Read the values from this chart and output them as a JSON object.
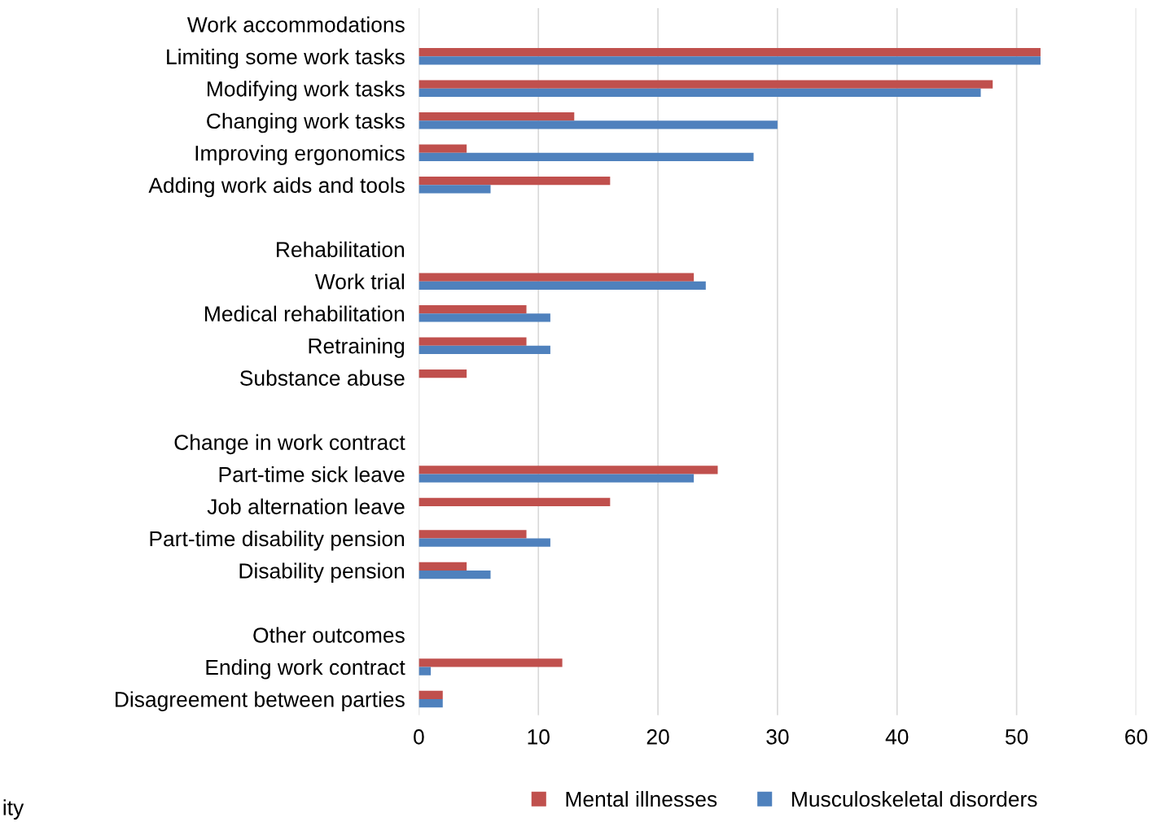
{
  "chart_data": {
    "type": "bar",
    "orientation": "horizontal",
    "categories": [
      "Work accommodations",
      "Limiting some work tasks",
      "Modifying work tasks",
      "Changing work tasks",
      "Improving ergonomics",
      "Adding work aids and tools",
      null,
      "Rehabilitation",
      "Work trial",
      "Medical rehabilitation",
      "Retraining",
      "Substance abuse",
      null,
      "Change in work contract",
      "Part-time sick leave",
      "Job alternation leave",
      "Part-time disability pension",
      "Disability pension",
      null,
      "Other outcomes",
      "Ending work contract",
      "Disagreement between parties"
    ],
    "series": [
      {
        "name": "Mental illnesses",
        "color": "#c0504d",
        "values": [
          null,
          52,
          48,
          13,
          4,
          16,
          null,
          null,
          23,
          9,
          9,
          4,
          null,
          null,
          25,
          16,
          9,
          4,
          null,
          null,
          12,
          2
        ]
      },
      {
        "name": "Musculoskeletal disorders",
        "color": "#4f81bd",
        "values": [
          null,
          52,
          47,
          30,
          28,
          6,
          null,
          null,
          24,
          11,
          11,
          null,
          null,
          null,
          23,
          null,
          11,
          6,
          null,
          null,
          1,
          2
        ]
      }
    ],
    "xlim": [
      0,
      60
    ],
    "xticks": [
      0,
      10,
      20,
      30,
      40,
      50,
      60
    ],
    "grid": "x",
    "legend": "bottom",
    "annotations": [
      "ity"
    ]
  }
}
